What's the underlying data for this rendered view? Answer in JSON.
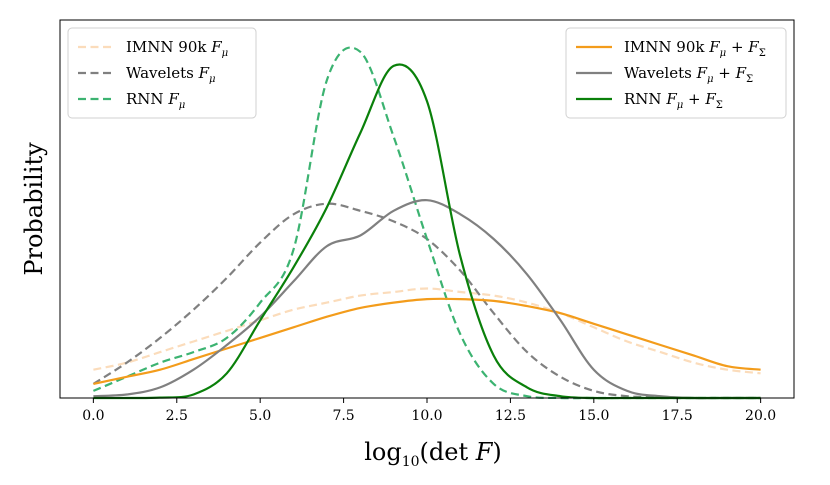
{
  "chart_data": {
    "type": "line",
    "title": "",
    "xlabel": "log10(det F)",
    "xlabel_parts": {
      "func": "log",
      "sub": "10",
      "rest": "(det ",
      "var": "F",
      "close": ")"
    },
    "ylabel": "Probability",
    "xlim": [
      -1,
      21
    ],
    "ylim": [
      0,
      1.07
    ],
    "xticks": [
      0.0,
      2.5,
      5.0,
      7.5,
      10.0,
      12.5,
      15.0,
      17.5,
      20.0
    ],
    "xtick_labels": [
      "0.0",
      "2.5",
      "5.0",
      "7.5",
      "10.0",
      "12.5",
      "15.0",
      "17.5",
      "20.0"
    ],
    "grid": false,
    "x": [
      0,
      1,
      2,
      3,
      4,
      5,
      6,
      7,
      8,
      9,
      10,
      11,
      12,
      13,
      14,
      15,
      16,
      17,
      18,
      19,
      20
    ],
    "series": [
      {
        "name": "IMNN 90k F_mu",
        "color": "#fbdcbb",
        "dash": true,
        "y": [
          0.08,
          0.1,
          0.13,
          0.16,
          0.19,
          0.22,
          0.25,
          0.27,
          0.29,
          0.3,
          0.31,
          0.3,
          0.29,
          0.27,
          0.24,
          0.2,
          0.16,
          0.13,
          0.1,
          0.08,
          0.07
        ]
      },
      {
        "name": "Wavelets F_mu",
        "color": "#808080",
        "dash": true,
        "y": [
          0.04,
          0.1,
          0.17,
          0.25,
          0.34,
          0.44,
          0.52,
          0.55,
          0.53,
          0.5,
          0.45,
          0.36,
          0.24,
          0.13,
          0.06,
          0.02,
          0.005,
          0.002,
          0.0,
          0.0,
          0.0
        ]
      },
      {
        "name": "RNN F_mu",
        "color": "#3cb371",
        "dash": true,
        "y": [
          0.02,
          0.06,
          0.1,
          0.13,
          0.17,
          0.27,
          0.42,
          0.9,
          0.98,
          0.74,
          0.45,
          0.18,
          0.04,
          0.005,
          0.0,
          0.0,
          0.0,
          0.0,
          0.0,
          0.0,
          0.0
        ]
      },
      {
        "name": "IMNN 90k F_mu + F_Sigma",
        "color": "#f39c1b",
        "dash": false,
        "y": [
          0.04,
          0.06,
          0.08,
          0.11,
          0.14,
          0.17,
          0.2,
          0.23,
          0.255,
          0.27,
          0.28,
          0.28,
          0.275,
          0.26,
          0.24,
          0.21,
          0.18,
          0.15,
          0.12,
          0.09,
          0.08
        ]
      },
      {
        "name": "Wavelets F_mu + F_Sigma",
        "color": "#808080",
        "dash": false,
        "y": [
          0.005,
          0.01,
          0.03,
          0.08,
          0.15,
          0.23,
          0.33,
          0.43,
          0.46,
          0.53,
          0.56,
          0.52,
          0.45,
          0.35,
          0.22,
          0.08,
          0.02,
          0.005,
          0.0,
          0.0,
          0.0
        ]
      },
      {
        "name": "RNN F_mu + F_Sigma",
        "color": "#0a800a",
        "dash": false,
        "y": [
          0.0,
          0.0,
          0.001,
          0.01,
          0.07,
          0.22,
          0.37,
          0.54,
          0.75,
          0.94,
          0.84,
          0.4,
          0.12,
          0.03,
          0.005,
          0.0,
          0.0,
          0.0,
          0.0,
          0.0,
          0.0
        ]
      }
    ],
    "legends": [
      {
        "position": "top-left",
        "entries": [
          {
            "series": 0,
            "label": "IMNN 90k",
            "var": "F",
            "sub": "μ"
          },
          {
            "series": 1,
            "label": "Wavelets",
            "var": "F",
            "sub": "μ"
          },
          {
            "series": 2,
            "label": "RNN",
            "var": "F",
            "sub": "μ"
          }
        ]
      },
      {
        "position": "top-right",
        "entries": [
          {
            "series": 3,
            "label": "IMNN 90k",
            "var": "F",
            "sub": "μ",
            "plus": "+",
            "var2": "F",
            "sub2": "Σ"
          },
          {
            "series": 4,
            "label": "Wavelets",
            "var": "F",
            "sub": "μ",
            "plus": "+",
            "var2": "F",
            "sub2": "Σ"
          },
          {
            "series": 5,
            "label": "RNN",
            "var": "F",
            "sub": "μ",
            "plus": "+",
            "var2": "F",
            "sub2": "Σ"
          }
        ]
      }
    ]
  }
}
